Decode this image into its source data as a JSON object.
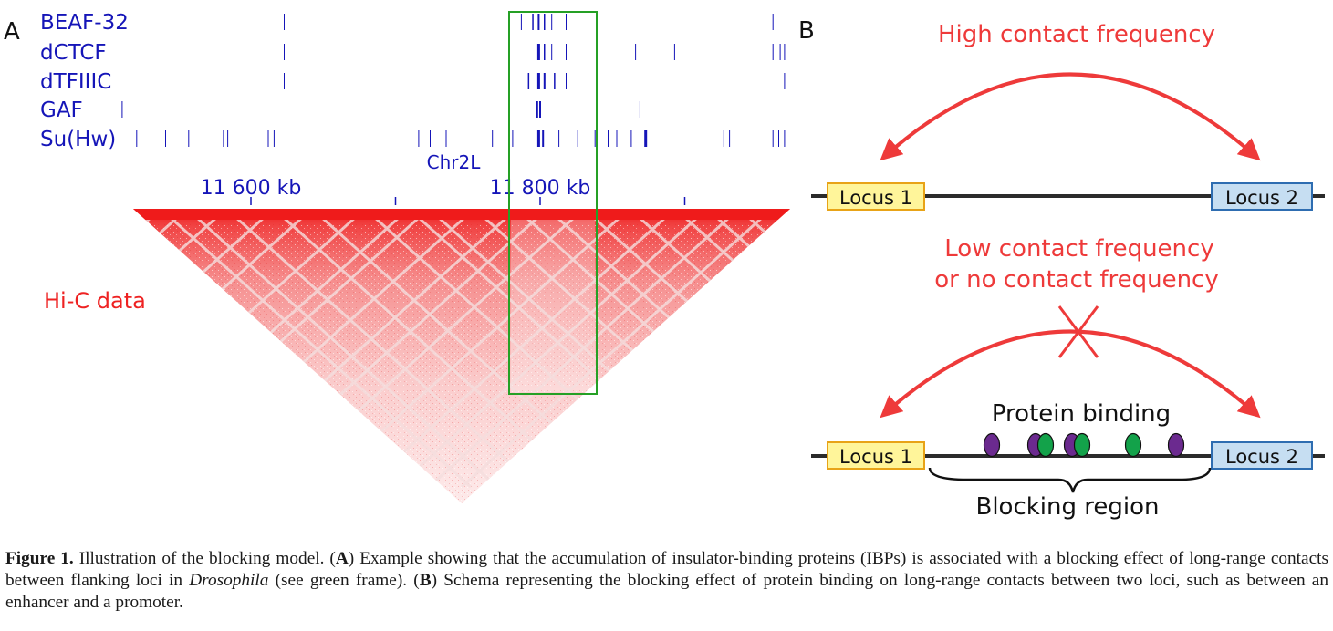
{
  "panel_a": {
    "label": "A",
    "tracks": [
      {
        "name": "BEAF-32",
        "marks": [
          {
            "kb": 11623,
            "w": 1
          },
          {
            "kb": 11787,
            "w": 1
          },
          {
            "kb": 11795,
            "w": 1.5
          },
          {
            "kb": 11799,
            "w": 2
          },
          {
            "kb": 11803,
            "w": 1.5
          },
          {
            "kb": 11808,
            "w": 1
          },
          {
            "kb": 11818,
            "w": 1
          },
          {
            "kb": 11961,
            "w": 1
          }
        ]
      },
      {
        "name": "dCTCF",
        "marks": [
          {
            "kb": 11623,
            "w": 1
          },
          {
            "kb": 11799,
            "w": 3
          },
          {
            "kb": 11803,
            "w": 1.5
          },
          {
            "kb": 11808,
            "w": 1
          },
          {
            "kb": 11818,
            "w": 1
          },
          {
            "kb": 11866,
            "w": 1
          },
          {
            "kb": 11893,
            "w": 1
          },
          {
            "kb": 11961,
            "w": 1
          },
          {
            "kb": 11966,
            "w": 1
          },
          {
            "kb": 11969,
            "w": 1
          }
        ]
      },
      {
        "name": "dTFIIIC",
        "marks": [
          {
            "kb": 11623,
            "w": 1
          },
          {
            "kb": 11792,
            "w": 1.5
          },
          {
            "kb": 11799,
            "w": 3
          },
          {
            "kb": 11803,
            "w": 2
          },
          {
            "kb": 11810,
            "w": 1.5
          },
          {
            "kb": 11818,
            "w": 1
          },
          {
            "kb": 11969,
            "w": 1
          }
        ]
      },
      {
        "name": "GAF",
        "marks": [
          {
            "kb": 11511,
            "w": 1
          },
          {
            "kb": 11798,
            "w": 2
          },
          {
            "kb": 11800,
            "w": 2
          },
          {
            "kb": 11869,
            "w": 1
          }
        ]
      },
      {
        "name": "Su(Hw)",
        "marks": [
          {
            "kb": 11521,
            "w": 1
          },
          {
            "kb": 11541,
            "w": 1
          },
          {
            "kb": 11557,
            "w": 1
          },
          {
            "kb": 11581,
            "w": 1
          },
          {
            "kb": 11584,
            "w": 1
          },
          {
            "kb": 11612,
            "w": 1
          },
          {
            "kb": 11616,
            "w": 1
          },
          {
            "kb": 11716,
            "w": 1
          },
          {
            "kb": 11724,
            "w": 1
          },
          {
            "kb": 11735,
            "w": 1
          },
          {
            "kb": 11767,
            "w": 1
          },
          {
            "kb": 11781,
            "w": 1
          },
          {
            "kb": 11799,
            "w": 3
          },
          {
            "kb": 11802,
            "w": 2
          },
          {
            "kb": 11813,
            "w": 1
          },
          {
            "kb": 11826,
            "w": 1
          },
          {
            "kb": 11838,
            "w": 1
          },
          {
            "kb": 11847,
            "w": 1
          },
          {
            "kb": 11853,
            "w": 1
          },
          {
            "kb": 11863,
            "w": 1
          },
          {
            "kb": 11873,
            "w": 3
          },
          {
            "kb": 11927,
            "w": 1
          },
          {
            "kb": 11931,
            "w": 1
          },
          {
            "kb": 11961,
            "w": 1
          },
          {
            "kb": 11965,
            "w": 1
          },
          {
            "kb": 11969,
            "w": 1
          }
        ]
      }
    ],
    "chromosome": "Chr2L",
    "scale_labels": [
      {
        "kb": 11600,
        "text": "11 600 kb"
      },
      {
        "kb": 11800,
        "text": "11 800 kb"
      }
    ],
    "scale_ticks_kb": [
      11600,
      11700,
      11800,
      11900
    ],
    "hic_label": "Hi-C data",
    "colors": {
      "track": "#1515b8",
      "hic": "#ef1b1b",
      "frame": "#25a025",
      "label": "#ee2222"
    }
  },
  "panel_b": {
    "label": "B",
    "top": {
      "arc_label": "High contact frequency",
      "locus1": "Locus 1",
      "locus2": "Locus 2"
    },
    "bottom": {
      "arc_label_line1": "Low contact frequency",
      "arc_label_line2": "or no contact frequency",
      "protein_label": "Protein binding",
      "region_label": "Blocking region",
      "locus1": "Locus 1",
      "locus2": "Locus 2",
      "proteins": [
        "purple",
        "purple",
        "green",
        "purple",
        "green",
        "green",
        "purple"
      ]
    },
    "colors": {
      "arrow": "#ee3a3a",
      "locus1": "#fff59a",
      "locus1_border": "#e8a317",
      "locus2": "#c6def2",
      "locus2_border": "#2e6db1",
      "purple": "#6b2a8f",
      "green": "#13a24a"
    }
  },
  "caption": {
    "fig": "Figure 1.",
    "t1": " Illustration of the blocking model. (",
    "a": "A",
    "t2": ") Example showing that the accumulation of insulator-binding proteins (IBPs) is associated with a blocking effect of long-range contacts between flanking loci in ",
    "species": "Drosophila",
    "t3": " (see green frame). (",
    "b": "B",
    "t4": ") Schema representing the blocking effect of protein binding on long-range contacts between two loci, such as between an enhancer and a promoter."
  }
}
